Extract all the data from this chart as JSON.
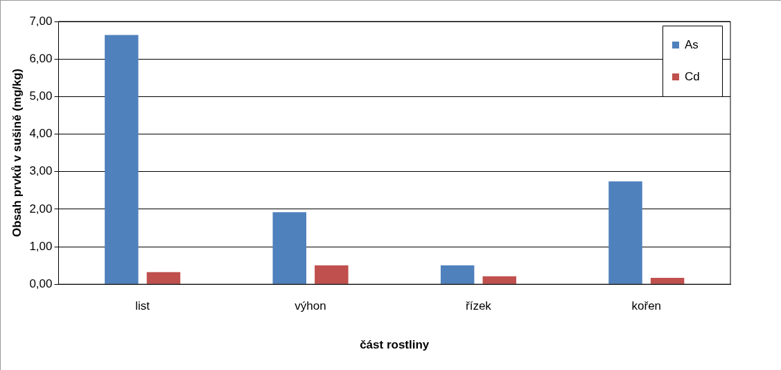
{
  "chart_data": {
    "type": "bar",
    "xlabel": "část rostliny",
    "ylabel": "Obsah prvků v sušině (mg/kg)",
    "categories": [
      "list",
      "výhon",
      "řízek",
      "kořen"
    ],
    "series": [
      {
        "name": "As",
        "color": "#4f81bd",
        "values": [
          6.64,
          1.92,
          0.5,
          2.74
        ]
      },
      {
        "name": "Cd",
        "color": "#c0504d",
        "values": [
          0.32,
          0.5,
          0.21,
          0.17
        ]
      }
    ],
    "ylim": [
      0,
      7
    ],
    "yticks": [
      {
        "value": 0,
        "label": "0,00"
      },
      {
        "value": 1,
        "label": "1,00"
      },
      {
        "value": 2,
        "label": "2,00"
      },
      {
        "value": 3,
        "label": "3,00"
      },
      {
        "value": 4,
        "label": "4,00"
      },
      {
        "value": 5,
        "label": "5,00"
      },
      {
        "value": 6,
        "label": "6,00"
      },
      {
        "value": 7,
        "label": "7,00"
      }
    ],
    "grid": "y",
    "legend": "top right"
  }
}
